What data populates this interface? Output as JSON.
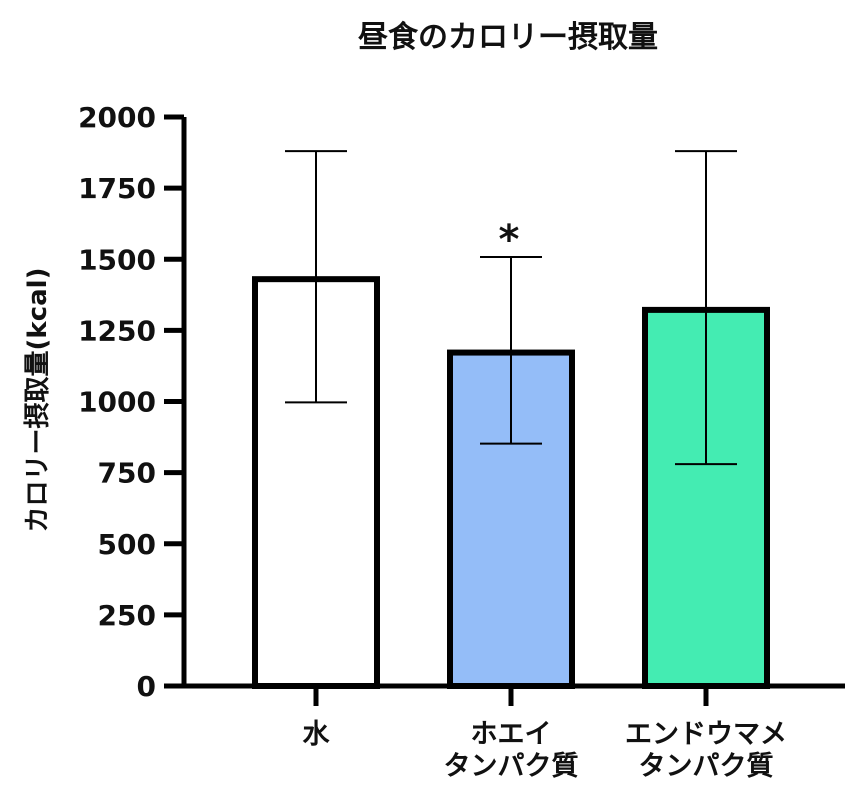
{
  "chart_data": {
    "type": "bar",
    "title": "昼食のカロリー摂取量",
    "xlabel": "",
    "ylabel": "カロリー摂取量(kcal)",
    "ylim": [
      0,
      2000
    ],
    "yticks": [
      "0",
      "250",
      "500",
      "750",
      "1000",
      "1250",
      "1500",
      "1750",
      "2000"
    ],
    "categories": [
      [
        "水"
      ],
      [
        "ホエイ",
        "タンパク質"
      ],
      [
        "エンドウマメ",
        "タンパク質"
      ]
    ],
    "values": [
      1430,
      1172,
      1322
    ],
    "error_low": [
      997,
      852,
      780
    ],
    "error_high": [
      1880,
      1508,
      1880
    ],
    "colors": [
      "#ffffff",
      "#94bdf8",
      "#44ecb2"
    ],
    "annotations": [
      {
        "category_index": 1,
        "text": "*"
      }
    ],
    "grid": false,
    "legend": "none"
  }
}
